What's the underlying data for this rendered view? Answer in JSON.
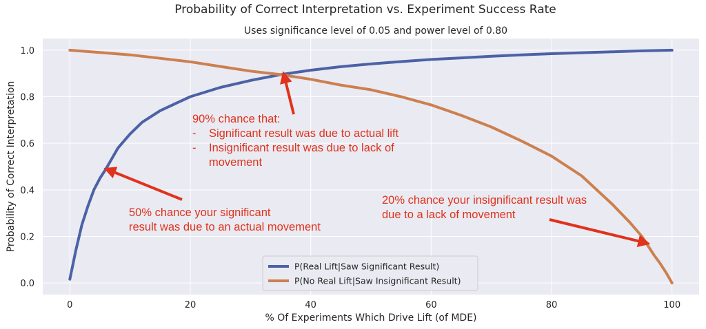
{
  "chart_data": {
    "type": "line",
    "title": "Probability of Correct Interpretation vs. Experiment Success Rate",
    "subtitle": "Uses significance level of 0.05 and power level of 0.80",
    "xlabel": "% Of Experiments Which Drive Lift (of MDE)",
    "ylabel": "Probability of Correct Interpretation",
    "xlim": [
      -4.5,
      104.5
    ],
    "ylim": [
      -0.05,
      1.05
    ],
    "x_ticks": [
      0,
      20,
      40,
      60,
      80,
      100
    ],
    "x_tick_labels": [
      "0",
      "20",
      "40",
      "60",
      "80",
      "100"
    ],
    "y_ticks": [
      0.0,
      0.2,
      0.4,
      0.6,
      0.8,
      1.0
    ],
    "y_tick_labels": [
      "0.0",
      "0.2",
      "0.4",
      "0.6",
      "0.8",
      "1.0"
    ],
    "grid": true,
    "legend_position": "bottom-center",
    "series": [
      {
        "name": "P(Real Lift|Saw Significant Result)",
        "color": "#4c62a6",
        "x": [
          0,
          1,
          2,
          3,
          4,
          5,
          6,
          8,
          10,
          12,
          15,
          20,
          25,
          30,
          35,
          40,
          45,
          50,
          55,
          60,
          65,
          70,
          75,
          80,
          85,
          90,
          95,
          100
        ],
        "values": [
          0.016,
          0.14,
          0.25,
          0.33,
          0.4,
          0.45,
          0.49,
          0.58,
          0.64,
          0.69,
          0.74,
          0.8,
          0.84,
          0.87,
          0.895,
          0.914,
          0.929,
          0.941,
          0.951,
          0.96,
          0.967,
          0.974,
          0.98,
          0.985,
          0.989,
          0.993,
          0.997,
          1.0
        ]
      },
      {
        "name": "P(No Real Lift|Saw Insignificant Result)",
        "color": "#cc8050",
        "x": [
          0,
          5,
          10,
          15,
          20,
          25,
          30,
          35,
          40,
          45,
          50,
          55,
          60,
          65,
          70,
          75,
          80,
          85,
          90,
          93,
          95,
          97,
          98,
          99,
          100
        ],
        "values": [
          1.0,
          0.99,
          0.98,
          0.965,
          0.95,
          0.93,
          0.91,
          0.895,
          0.875,
          0.85,
          0.83,
          0.8,
          0.765,
          0.72,
          0.67,
          0.61,
          0.545,
          0.46,
          0.34,
          0.26,
          0.2,
          0.12,
          0.085,
          0.045,
          0.0
        ]
      }
    ],
    "annotations": [
      {
        "lines": [
          "90% chance that:"
        ],
        "bullets": [
          "Significant result was due to actual lift",
          "Insignificant result was due to lack of",
          "movement"
        ],
        "color": "#e0321c",
        "arrow_to": [
          35.5,
          0.9
        ]
      },
      {
        "lines": [
          "50% chance your significant",
          "result was due to an actual movement"
        ],
        "color": "#e0321c",
        "arrow_to": [
          6.0,
          0.49
        ]
      },
      {
        "lines": [
          "20% chance your insignificant result was",
          "due to a lack of movement"
        ],
        "color": "#e0321c",
        "arrow_to": [
          96.0,
          0.17
        ]
      }
    ]
  }
}
